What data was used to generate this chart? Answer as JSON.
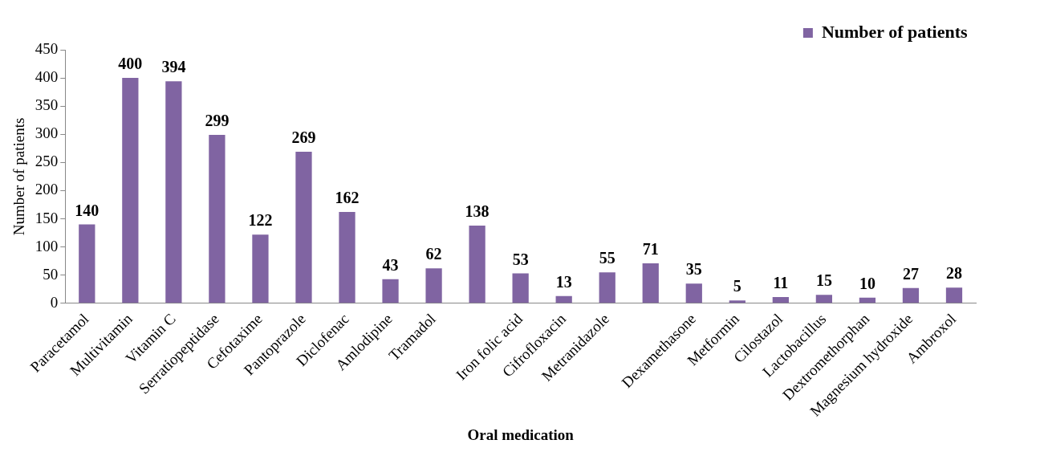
{
  "chart_data": {
    "type": "bar",
    "xlabel": "Oral medication",
    "ylabel": "Number of patients",
    "categories": [
      "Paracetamol",
      "Multivitamin",
      "Vitamin C",
      "Serratiopeptidase",
      "Cefotaxime",
      "Pantoprazole",
      "Diclofenac",
      "Amlodipine",
      "Tramadol",
      null,
      "Iron folic acid",
      "Cifrofloxacin",
      "Metranidazole",
      null,
      "Dexamethasone",
      "Metformin",
      "Cilostazol",
      "Lactobacillus",
      "Dextromethorphan",
      "Magnesium hydroxide",
      "Ambroxol"
    ],
    "series": [
      {
        "name": "Number of patients",
        "color": "#8064a2",
        "values": [
          140,
          400,
          394,
          299,
          122,
          269,
          162,
          43,
          62,
          138,
          53,
          13,
          55,
          71,
          35,
          5,
          11,
          15,
          10,
          27,
          28
        ]
      }
    ],
    "ylim": [
      0,
      450
    ],
    "yticks": [
      0,
      50,
      100,
      150,
      200,
      250,
      300,
      350,
      400,
      450
    ],
    "data_labels": true,
    "grid": false,
    "legend": "top right"
  }
}
